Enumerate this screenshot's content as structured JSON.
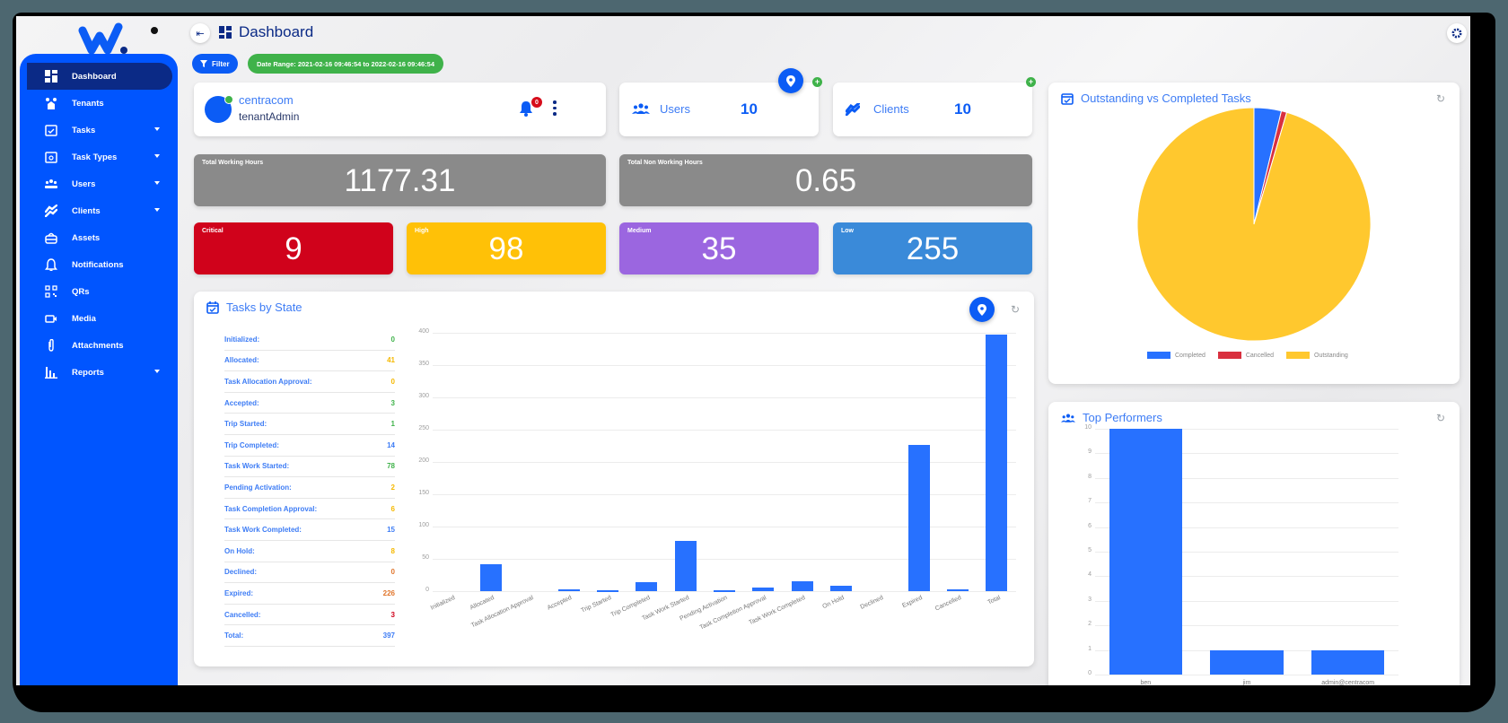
{
  "app": {
    "brand": "W.",
    "page_title": "Dashboard"
  },
  "sidebar": {
    "items": [
      {
        "label": "Dashboard",
        "icon": "dashboard-icon",
        "active": true,
        "has_caret": false
      },
      {
        "label": "Tenants",
        "icon": "tenants-icon",
        "active": false,
        "has_caret": false
      },
      {
        "label": "Tasks",
        "icon": "calendar-check-icon",
        "active": false,
        "has_caret": true
      },
      {
        "label": "Task Types",
        "icon": "calendar-search-icon",
        "active": false,
        "has_caret": true
      },
      {
        "label": "Users",
        "icon": "users-icon",
        "active": false,
        "has_caret": true
      },
      {
        "label": "Clients",
        "icon": "handshake-icon",
        "active": false,
        "has_caret": true
      },
      {
        "label": "Assets",
        "icon": "toolbox-icon",
        "active": false,
        "has_caret": false
      },
      {
        "label": "Notifications",
        "icon": "bell-icon",
        "active": false,
        "has_caret": false
      },
      {
        "label": "QRs",
        "icon": "qr-code-icon",
        "active": false,
        "has_caret": false
      },
      {
        "label": "Media",
        "icon": "video-camera-icon",
        "active": false,
        "has_caret": false
      },
      {
        "label": "Attachments",
        "icon": "paperclip-icon",
        "active": false,
        "has_caret": false
      },
      {
        "label": "Reports",
        "icon": "bar-chart-icon",
        "active": false,
        "has_caret": true
      }
    ]
  },
  "toolbar": {
    "filter_label": "Filter",
    "date_range": "Date Range: 2021-02-16 09:46:54 to 2022-02-16 09:46:54"
  },
  "profile": {
    "tenant": "centracom",
    "role": "tenantAdmin",
    "notification_count": "0"
  },
  "stats": {
    "users": {
      "label": "Users",
      "value": "10"
    },
    "clients": {
      "label": "Clients",
      "value": "10"
    }
  },
  "hours": {
    "working": {
      "label": "Total Working Hours",
      "value": "1177.31"
    },
    "non_working": {
      "label": "Total Non Working Hours",
      "value": "0.65"
    }
  },
  "priorities": [
    {
      "label": "Critical",
      "value": "9",
      "color": "#d0021b"
    },
    {
      "label": "High",
      "value": "98",
      "color": "#ffc107"
    },
    {
      "label": "Medium",
      "value": "35",
      "color": "#9b66e0"
    },
    {
      "label": "Low",
      "value": "255",
      "color": "#3a8ad9"
    }
  ],
  "tasks_by_state": {
    "title": "Tasks by State",
    "rows": [
      {
        "label": "Initialized:",
        "value": "0",
        "color": "#3fb24a"
      },
      {
        "label": "Allocated:",
        "value": "41",
        "color": "#f5b800"
      },
      {
        "label": "Task Allocation Approval:",
        "value": "0",
        "color": "#f5b800"
      },
      {
        "label": "Accepted:",
        "value": "3",
        "color": "#3fb24a"
      },
      {
        "label": "Trip Started:",
        "value": "1",
        "color": "#3fb24a"
      },
      {
        "label": "Trip Completed:",
        "value": "14",
        "color": "#3d7cf5"
      },
      {
        "label": "Task Work Started:",
        "value": "78",
        "color": "#3fb24a"
      },
      {
        "label": "Pending Activation:",
        "value": "2",
        "color": "#f5b800"
      },
      {
        "label": "Task Completion Approval:",
        "value": "6",
        "color": "#f5b800"
      },
      {
        "label": "Task Work Completed:",
        "value": "15",
        "color": "#3d7cf5"
      },
      {
        "label": "On Hold:",
        "value": "8",
        "color": "#f5b800"
      },
      {
        "label": "Declined:",
        "value": "0",
        "color": "#e0752b"
      },
      {
        "label": "Expired:",
        "value": "226",
        "color": "#e0752b"
      },
      {
        "label": "Cancelled:",
        "value": "3",
        "color": "#d0021b"
      },
      {
        "label": "Total:",
        "value": "397",
        "color": "#3d7cf5"
      }
    ]
  },
  "outstanding_panel": {
    "title": "Outstanding vs Completed Tasks"
  },
  "top_performers_panel": {
    "title": "Top Performers"
  },
  "chart_data": [
    {
      "type": "bar",
      "title": "Tasks by State",
      "categories": [
        "Initialized",
        "Allocated",
        "Task Allocation Approval",
        "Accepted",
        "Trip Started",
        "Trip Completed",
        "Task Work Started",
        "Pending Activation",
        "Task Completion Approval",
        "Task Work Completed",
        "On Hold",
        "Declined",
        "Expired",
        "Cancelled",
        "Total"
      ],
      "values": [
        0,
        41,
        0,
        3,
        1,
        14,
        78,
        2,
        6,
        15,
        8,
        0,
        226,
        3,
        397
      ],
      "yticks": [
        0,
        50,
        100,
        150,
        200,
        250,
        300,
        350,
        400
      ],
      "ylim": [
        0,
        400
      ],
      "xlabel": "",
      "ylabel": "",
      "grid": true,
      "color": "#2771ff"
    },
    {
      "type": "pie",
      "title": "Outstanding vs Completed Tasks",
      "categories": [
        "Completed",
        "Cancelled",
        "Outstanding"
      ],
      "values": [
        15,
        3,
        379
      ],
      "colors": [
        "#2771ff",
        "#d9303f",
        "#ffc82e"
      ],
      "legend_position": "bottom"
    },
    {
      "type": "bar",
      "title": "Top Performers",
      "categories": [
        "ben",
        "jim",
        "admin@centracom"
      ],
      "values": [
        10,
        1,
        1
      ],
      "yticks": [
        0,
        1,
        2,
        3,
        4,
        5,
        6,
        7,
        8,
        9,
        10
      ],
      "ylim": [
        0,
        10
      ],
      "grid": true,
      "color": "#2771ff"
    }
  ]
}
